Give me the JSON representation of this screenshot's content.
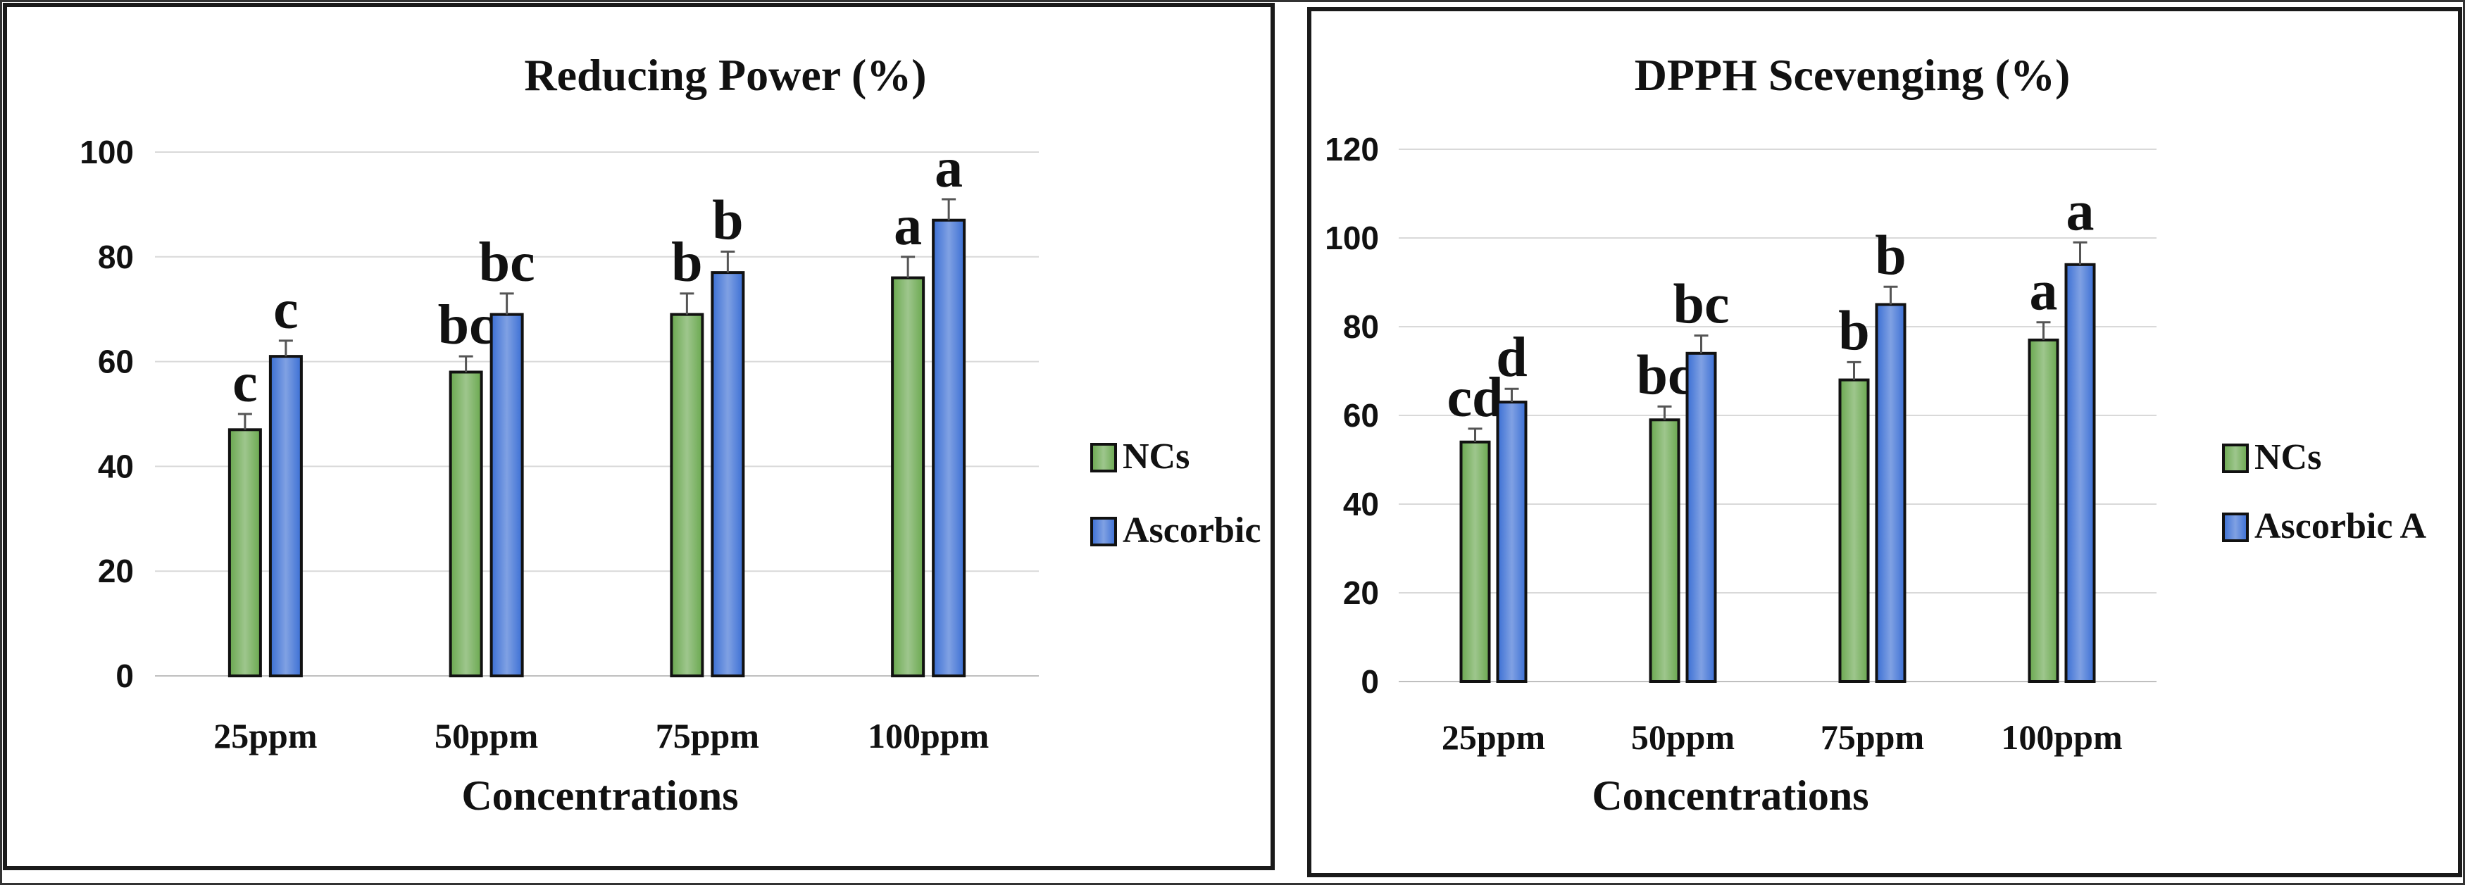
{
  "colors": {
    "ncs": "#6aa84f",
    "ascorbic": "#3b6fd4"
  },
  "chart_data": [
    {
      "type": "bar",
      "title": "Reducing Power (%)",
      "xlabel": "Concentrations",
      "ylabel": "",
      "categories": [
        "25ppm",
        "50ppm",
        "75ppm",
        "100ppm"
      ],
      "ylim": [
        0,
        100
      ],
      "yticks": [
        0,
        20,
        40,
        60,
        80,
        100
      ],
      "yticks_text": [
        "0",
        "20",
        "40",
        "60",
        "80",
        "100"
      ],
      "legend_position": "right",
      "series": [
        {
          "name": "NCs",
          "values": [
            47,
            58,
            69,
            76
          ],
          "errors": [
            3,
            3,
            4,
            4
          ],
          "letters": [
            "c",
            "bc",
            "b",
            "a"
          ]
        },
        {
          "name": "Ascorbic",
          "values": [
            61,
            69,
            77,
            87
          ],
          "errors": [
            3,
            4,
            4,
            4
          ],
          "letters": [
            "c",
            "bc",
            "b",
            "a"
          ]
        }
      ]
    },
    {
      "type": "bar",
      "title": "DPPH Scevenging (%)",
      "xlabel": "Concentrations",
      "ylabel": "",
      "categories": [
        "25ppm",
        "50ppm",
        "75ppm",
        "100ppm"
      ],
      "ylim": [
        0,
        120
      ],
      "yticks": [
        0,
        20,
        40,
        60,
        80,
        100,
        120
      ],
      "yticks_text": [
        "0",
        "20",
        "40",
        "60",
        "80",
        "100",
        "120"
      ],
      "legend_position": "right",
      "series": [
        {
          "name": "NCs",
          "values": [
            54,
            59,
            68,
            77
          ],
          "errors": [
            3,
            3,
            4,
            4
          ],
          "letters": [
            "cd",
            "bc",
            "b",
            "a"
          ]
        },
        {
          "name": "Ascorbic A",
          "values": [
            63,
            74,
            85,
            94
          ],
          "errors": [
            3,
            4,
            4,
            5
          ],
          "letters": [
            "d",
            "bc",
            "b",
            "a"
          ]
        }
      ]
    }
  ]
}
